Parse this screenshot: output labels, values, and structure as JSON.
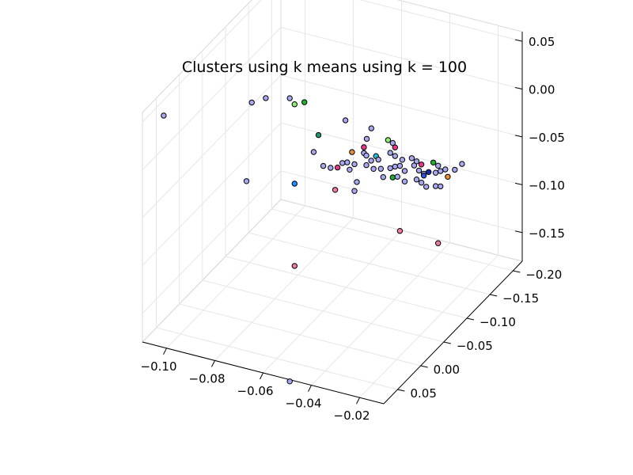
{
  "chart_data": {
    "type": "scatter",
    "title": "Clusters using k means using k = 100",
    "xlabel": "",
    "ylabel": "",
    "zlabel": "",
    "xlim": [
      -0.11,
      -0.01
    ],
    "ylim": [
      -0.22,
      0.08
    ],
    "zlim": [
      -0.18,
      0.06
    ],
    "x_ticks": [
      "−0.10",
      "−0.08",
      "−0.06",
      "−0.04",
      "−0.02"
    ],
    "y_ticks": [
      "−0.20",
      "−0.15",
      "−0.10",
      "−0.05",
      "0.00",
      "0.05"
    ],
    "z_ticks": [
      "−0.15",
      "−0.10",
      "−0.05",
      "0.00",
      "0.05"
    ],
    "grid": true,
    "legend": false,
    "colors": {
      "periwinkle": "#a8a8f0",
      "hotpink": "#e8388a",
      "pink": "#f07aa0",
      "green": "#22b030",
      "lightgreen": "#90ee70",
      "teal": "#1a9b6b",
      "azure": "#1e90ff",
      "cyan": "#29b8d8",
      "orange": "#e89030",
      "navy": "#1b2bb0",
      "blue": "#3050e0"
    },
    "points": [
      {
        "x": -0.105,
        "y": 0.06,
        "z": 0.05,
        "c": "periwinkle"
      },
      {
        "x": -0.045,
        "y": -0.02,
        "z": 0.044,
        "c": "periwinkle"
      },
      {
        "x": -0.08,
        "y": 0.0,
        "z": 0.05,
        "c": "periwinkle"
      },
      {
        "x": -0.078,
        "y": -0.02,
        "z": 0.046,
        "c": "periwinkle"
      },
      {
        "x": -0.07,
        "y": -0.03,
        "z": 0.046,
        "c": "periwinkle"
      },
      {
        "x": -0.068,
        "y": -0.03,
        "z": 0.041,
        "c": "lightgreen"
      },
      {
        "x": -0.062,
        "y": -0.02,
        "z": 0.052,
        "c": "green"
      },
      {
        "x": -0.04,
        "y": -0.05,
        "z": 0.024,
        "c": "periwinkle"
      },
      {
        "x": -0.04,
        "y": -0.04,
        "z": 0.018,
        "c": "periwinkle"
      },
      {
        "x": -0.06,
        "y": -0.04,
        "z": 0.009,
        "c": "teal"
      },
      {
        "x": -0.035,
        "y": -0.06,
        "z": 0.01,
        "c": "lightgreen"
      },
      {
        "x": -0.035,
        "y": -0.07,
        "z": 0.002,
        "c": "periwinkle"
      },
      {
        "x": -0.034,
        "y": -0.07,
        "z": -0.002,
        "c": "hotpink"
      },
      {
        "x": -0.045,
        "y": -0.06,
        "z": -0.004,
        "c": "hotpink"
      },
      {
        "x": -0.048,
        "y": -0.05,
        "z": -0.006,
        "c": "orange"
      },
      {
        "x": -0.045,
        "y": -0.06,
        "z": -0.01,
        "c": "periwinkle"
      },
      {
        "x": -0.044,
        "y": -0.06,
        "z": -0.012,
        "c": "periwinkle"
      },
      {
        "x": -0.04,
        "y": -0.06,
        "z": -0.01,
        "c": "cyan"
      },
      {
        "x": -0.039,
        "y": -0.06,
        "z": -0.013,
        "c": "periwinkle"
      },
      {
        "x": -0.036,
        "y": -0.07,
        "z": -0.009,
        "c": "periwinkle"
      },
      {
        "x": -0.034,
        "y": -0.07,
        "z": -0.011,
        "c": "periwinkle"
      },
      {
        "x": -0.031,
        "y": -0.07,
        "z": -0.013,
        "c": "periwinkle"
      },
      {
        "x": -0.029,
        "y": -0.08,
        "z": -0.015,
        "c": "periwinkle"
      },
      {
        "x": -0.027,
        "y": -0.08,
        "z": -0.017,
        "c": "periwinkle"
      },
      {
        "x": -0.025,
        "y": -0.08,
        "z": -0.019,
        "c": "hotpink"
      },
      {
        "x": -0.022,
        "y": -0.09,
        "z": -0.02,
        "c": "green"
      },
      {
        "x": -0.02,
        "y": -0.09,
        "z": -0.022,
        "c": "periwinkle"
      },
      {
        "x": -0.042,
        "y": -0.06,
        "z": -0.016,
        "c": "periwinkle"
      },
      {
        "x": -0.047,
        "y": -0.05,
        "z": -0.018,
        "c": "periwinkle"
      },
      {
        "x": -0.05,
        "y": -0.05,
        "z": -0.018,
        "c": "periwinkle"
      },
      {
        "x": -0.052,
        "y": -0.05,
        "z": -0.02,
        "c": "periwinkle"
      },
      {
        "x": -0.055,
        "y": -0.04,
        "z": -0.022,
        "c": "periwinkle"
      },
      {
        "x": -0.054,
        "y": -0.05,
        "z": -0.026,
        "c": "hotpink"
      },
      {
        "x": -0.049,
        "y": -0.05,
        "z": -0.025,
        "c": "periwinkle"
      },
      {
        "x": -0.044,
        "y": -0.06,
        "z": -0.022,
        "c": "periwinkle"
      },
      {
        "x": -0.041,
        "y": -0.06,
        "z": -0.024,
        "c": "periwinkle"
      },
      {
        "x": -0.038,
        "y": -0.06,
        "z": -0.022,
        "c": "periwinkle"
      },
      {
        "x": -0.036,
        "y": -0.07,
        "z": -0.025,
        "c": "periwinkle"
      },
      {
        "x": -0.034,
        "y": -0.07,
        "z": -0.022,
        "c": "periwinkle"
      },
      {
        "x": -0.032,
        "y": -0.07,
        "z": -0.02,
        "c": "periwinkle"
      },
      {
        "x": -0.03,
        "y": -0.07,
        "z": -0.024,
        "c": "periwinkle"
      },
      {
        "x": -0.028,
        "y": -0.08,
        "z": -0.022,
        "c": "periwinkle"
      },
      {
        "x": -0.026,
        "y": -0.08,
        "z": -0.026,
        "c": "periwinkle"
      },
      {
        "x": -0.024,
        "y": -0.08,
        "z": -0.028,
        "c": "periwinkle"
      },
      {
        "x": -0.022,
        "y": -0.08,
        "z": -0.025,
        "c": "navy"
      },
      {
        "x": -0.021,
        "y": -0.09,
        "z": -0.03,
        "c": "periwinkle"
      },
      {
        "x": -0.019,
        "y": -0.09,
        "z": -0.027,
        "c": "periwinkle"
      },
      {
        "x": -0.017,
        "y": -0.09,
        "z": -0.024,
        "c": "periwinkle"
      },
      {
        "x": -0.016,
        "y": -0.09,
        "z": -0.031,
        "c": "orange"
      },
      {
        "x": -0.015,
        "y": -0.1,
        "z": -0.028,
        "c": "periwinkle"
      },
      {
        "x": -0.012,
        "y": -0.1,
        "z": -0.02,
        "c": "periwinkle"
      },
      {
        "x": -0.037,
        "y": -0.06,
        "z": -0.03,
        "c": "periwinkle"
      },
      {
        "x": -0.035,
        "y": -0.07,
        "z": -0.034,
        "c": "green"
      },
      {
        "x": -0.033,
        "y": -0.07,
        "z": -0.032,
        "c": "periwinkle"
      },
      {
        "x": -0.03,
        "y": -0.07,
        "z": -0.035,
        "c": "periwinkle"
      },
      {
        "x": -0.027,
        "y": -0.08,
        "z": -0.036,
        "c": "periwinkle"
      },
      {
        "x": -0.025,
        "y": -0.08,
        "z": -0.038,
        "c": "periwinkle"
      },
      {
        "x": -0.023,
        "y": -0.08,
        "z": -0.041,
        "c": "periwinkle"
      },
      {
        "x": -0.021,
        "y": -0.09,
        "z": -0.044,
        "c": "periwinkle"
      },
      {
        "x": -0.019,
        "y": -0.09,
        "z": -0.043,
        "c": "periwinkle"
      },
      {
        "x": -0.024,
        "y": -0.08,
        "z": -0.03,
        "c": "blue"
      },
      {
        "x": -0.046,
        "y": -0.05,
        "z": -0.036,
        "c": "periwinkle"
      },
      {
        "x": -0.058,
        "y": -0.04,
        "z": -0.022,
        "c": "periwinkle"
      },
      {
        "x": -0.062,
        "y": -0.04,
        "z": -0.01,
        "c": "periwinkle"
      },
      {
        "x": -0.086,
        "y": -0.02,
        "z": -0.046,
        "c": "periwinkle"
      },
      {
        "x": -0.068,
        "y": -0.03,
        "z": -0.042,
        "c": "azure"
      },
      {
        "x": -0.055,
        "y": -0.05,
        "z": -0.05,
        "c": "pink"
      },
      {
        "x": -0.047,
        "y": -0.05,
        "z": -0.046,
        "c": "periwinkle"
      },
      {
        "x": -0.032,
        "y": -0.07,
        "z": -0.088,
        "c": "pink"
      },
      {
        "x": -0.02,
        "y": -0.09,
        "z": -0.103,
        "c": "pink"
      },
      {
        "x": -0.068,
        "y": -0.03,
        "z": -0.128,
        "c": "pink"
      },
      {
        "x": -0.07,
        "y": -0.03,
        "z": -0.25,
        "c": "periwinkle"
      }
    ]
  }
}
